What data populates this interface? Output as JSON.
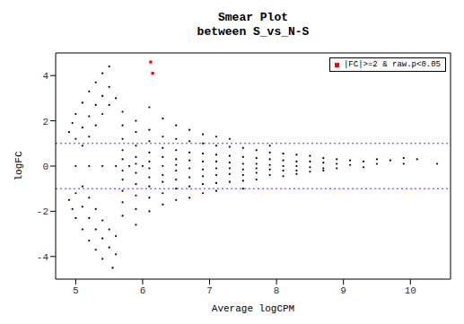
{
  "chart_data": {
    "type": "scatter",
    "title": "Smear Plot\nbetween S_vs_N-S",
    "x_label": "Average logCPM",
    "y_label": "logFC",
    "xlim": [
      4.7,
      10.6
    ],
    "xticks": [
      5,
      6,
      7,
      8,
      9,
      10
    ],
    "ylim": [
      -5,
      5
    ],
    "yticks": [
      -4,
      -2,
      0,
      2,
      4
    ],
    "hlines": [
      1,
      -1
    ],
    "grid": false,
    "legend": "top-right",
    "series": [
      {
        "color": "#000000",
        "marker": "circle",
        "x": [
          4.9,
          4.95,
          5.0,
          5.1,
          5.2,
          5.3,
          5.4,
          5.5,
          4.9,
          4.95,
          5.0,
          5.1,
          5.2,
          5.3,
          5.4,
          5.55,
          5.0,
          5.1,
          5.2,
          5.3,
          5.4,
          5.5,
          5.0,
          5.1,
          5.2,
          5.3,
          5.4,
          5.5,
          5.6,
          5.1,
          5.2,
          5.3,
          5.4,
          5.5,
          5.6,
          5.1,
          5.2,
          5.3,
          5.4,
          5.5,
          5.6,
          5.0,
          5.2,
          5.4,
          5.6,
          5.8,
          6.0,
          5.7,
          5.7,
          5.7,
          5.7,
          5.7,
          5.7,
          5.7,
          5.7,
          5.7,
          5.7,
          5.9,
          5.9,
          5.9,
          5.9,
          5.9,
          5.9,
          5.9,
          5.9,
          5.9,
          5.9,
          6.1,
          6.1,
          6.1,
          6.1,
          6.1,
          6.1,
          6.1,
          6.1,
          6.1,
          6.1,
          6.3,
          6.3,
          6.3,
          6.3,
          6.3,
          6.3,
          6.3,
          6.3,
          6.3,
          6.5,
          6.5,
          6.5,
          6.5,
          6.5,
          6.5,
          6.5,
          6.5,
          6.5,
          6.7,
          6.7,
          6.7,
          6.7,
          6.7,
          6.7,
          6.7,
          6.7,
          6.9,
          6.9,
          6.9,
          6.9,
          6.9,
          6.9,
          6.9,
          6.9,
          7.1,
          7.1,
          7.1,
          7.1,
          7.1,
          7.1,
          7.1,
          7.1,
          7.3,
          7.3,
          7.3,
          7.3,
          7.3,
          7.3,
          7.3,
          7.5,
          7.5,
          7.5,
          7.5,
          7.5,
          7.5,
          7.5,
          7.7,
          7.7,
          7.7,
          7.7,
          7.7,
          7.7,
          7.9,
          7.9,
          7.9,
          7.9,
          7.9,
          7.9,
          8.1,
          8.1,
          8.1,
          8.1,
          8.1,
          8.3,
          8.3,
          8.3,
          8.3,
          8.3,
          8.5,
          8.5,
          8.5,
          8.5,
          8.7,
          8.7,
          8.7,
          8.7,
          8.9,
          8.9,
          8.9,
          9.1,
          9.1,
          9.3,
          9.3,
          9.5,
          9.5,
          9.7,
          9.9,
          9.9,
          10.1,
          10.4
        ],
        "values": [
          1.5,
          1.9,
          2.3,
          2.8,
          3.3,
          3.7,
          4.1,
          4.4,
          -1.5,
          -1.9,
          -2.3,
          -2.8,
          -3.3,
          -3.7,
          -4.1,
          -4.5,
          1.2,
          1.7,
          2.2,
          2.7,
          3.1,
          3.5,
          -1.2,
          -1.8,
          -2.3,
          -2.8,
          -3.2,
          -3.6,
          -3.9,
          0.9,
          1.3,
          1.8,
          2.3,
          2.7,
          3.0,
          -0.9,
          -1.4,
          -1.9,
          -2.4,
          -2.8,
          -3.1,
          0,
          0,
          0,
          0,
          0,
          0,
          1.8,
          1.2,
          0.7,
          0.3,
          -0.2,
          -0.6,
          -1.1,
          -1.6,
          2.4,
          -2.2,
          1.5,
          0.9,
          0.4,
          0.1,
          -0.3,
          -0.8,
          -1.3,
          2.0,
          -1.9,
          -2.6,
          1.6,
          1.1,
          0.6,
          0.2,
          -0.1,
          -0.5,
          -0.9,
          -1.4,
          2.6,
          -2.0,
          1.3,
          0.8,
          0.4,
          0.0,
          -0.4,
          -0.7,
          -1.2,
          2.1,
          -1.7,
          1.2,
          0.7,
          0.3,
          0.05,
          -0.2,
          -0.6,
          -1.0,
          1.8,
          -1.5,
          1.1,
          0.6,
          0.25,
          -0.1,
          -0.5,
          -0.9,
          1.6,
          -1.4,
          1.0,
          0.55,
          0.2,
          -0.15,
          -0.45,
          -0.8,
          1.4,
          -1.2,
          0.9,
          0.5,
          0.2,
          -0.1,
          -0.4,
          -0.75,
          1.3,
          -1.1,
          0.85,
          0.45,
          0.15,
          -0.1,
          -0.35,
          -0.7,
          1.2,
          0.8,
          0.4,
          0.1,
          -0.15,
          -0.4,
          -0.65,
          -1.0,
          0.7,
          0.35,
          0.1,
          -0.1,
          -0.3,
          -0.6,
          0.6,
          0.3,
          0.05,
          -0.15,
          -0.4,
          0.9,
          0.55,
          0.25,
          0.0,
          -0.2,
          -0.45,
          0.5,
          0.2,
          0.0,
          -0.2,
          -0.35,
          0.45,
          0.2,
          -0.05,
          -0.25,
          0.35,
          0.15,
          -0.1,
          -0.2,
          0.3,
          0.1,
          -0.1,
          0.25,
          0.05,
          0.2,
          -0.05,
          0.3,
          0.1,
          0.25,
          0.35,
          0.1,
          0.3,
          0.1
        ]
      },
      {
        "name": "|FC|>=2 & raw.p<0.05",
        "color": "#ff0000",
        "marker": "square",
        "x": [
          6.12,
          6.15
        ],
        "values": [
          4.6,
          4.1
        ]
      }
    ]
  }
}
